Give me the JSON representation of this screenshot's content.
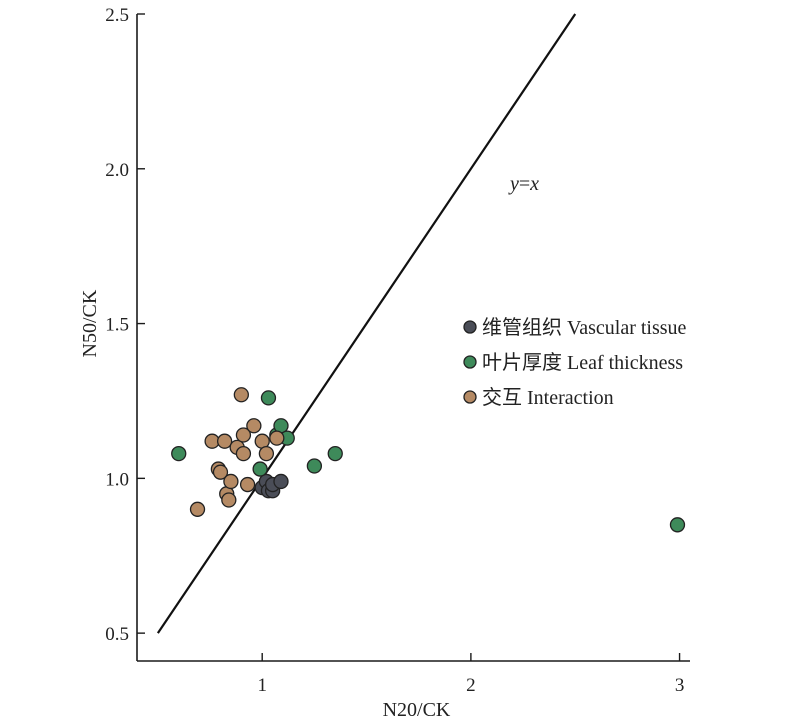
{
  "chart_data": {
    "type": "scatter",
    "title": "",
    "xlabel": "N20/CK",
    "ylabel": "N50/CK",
    "xlim": [
      0.4,
      3.05
    ],
    "ylim": [
      0.41,
      2.5
    ],
    "xticks": [
      "1",
      "2",
      "3"
    ],
    "yticks": [
      "0.5",
      "1.0",
      "1.5",
      "2.0",
      "2.5"
    ],
    "xtick_values": [
      1,
      2,
      3
    ],
    "ytick_values": [
      0.5,
      1.0,
      1.5,
      2.0,
      2.5
    ],
    "reference_line": {
      "label_prefix": "y",
      "label_eq": "=",
      "label_suffix": "x",
      "from": 0.5,
      "to": 2.5
    },
    "legend": {
      "placement": "right-middle"
    },
    "grid": false,
    "series": [
      {
        "name": "维管组织 Vascular tissue",
        "color": "#4a4d57",
        "points": [
          {
            "x": 1.0,
            "y": 0.97
          },
          {
            "x": 1.02,
            "y": 0.99
          },
          {
            "x": 1.03,
            "y": 0.96
          },
          {
            "x": 1.05,
            "y": 0.96
          },
          {
            "x": 1.05,
            "y": 0.98
          },
          {
            "x": 1.09,
            "y": 0.99
          }
        ]
      },
      {
        "name": "叶片厚度 Leaf thickness",
        "color": "#3e8a5a",
        "points": [
          {
            "x": 0.6,
            "y": 1.08
          },
          {
            "x": 0.99,
            "y": 1.03
          },
          {
            "x": 1.03,
            "y": 1.26
          },
          {
            "x": 1.07,
            "y": 1.14
          },
          {
            "x": 1.09,
            "y": 1.17
          },
          {
            "x": 1.12,
            "y": 1.13
          },
          {
            "x": 1.25,
            "y": 1.04
          },
          {
            "x": 1.35,
            "y": 1.08
          },
          {
            "x": 2.99,
            "y": 0.85
          }
        ]
      },
      {
        "name": "交互 Interaction",
        "color": "#b58a64",
        "points": [
          {
            "x": 0.69,
            "y": 0.9
          },
          {
            "x": 0.76,
            "y": 1.12
          },
          {
            "x": 0.79,
            "y": 1.03
          },
          {
            "x": 0.8,
            "y": 1.02
          },
          {
            "x": 0.82,
            "y": 1.12
          },
          {
            "x": 0.83,
            "y": 0.95
          },
          {
            "x": 0.84,
            "y": 0.93
          },
          {
            "x": 0.85,
            "y": 0.99
          },
          {
            "x": 0.88,
            "y": 1.1
          },
          {
            "x": 0.9,
            "y": 1.27
          },
          {
            "x": 0.91,
            "y": 1.14
          },
          {
            "x": 0.91,
            "y": 1.08
          },
          {
            "x": 0.93,
            "y": 0.98
          },
          {
            "x": 0.96,
            "y": 1.17
          },
          {
            "x": 1.0,
            "y": 1.12
          },
          {
            "x": 1.02,
            "y": 1.08
          },
          {
            "x": 1.07,
            "y": 1.13
          }
        ]
      }
    ]
  }
}
